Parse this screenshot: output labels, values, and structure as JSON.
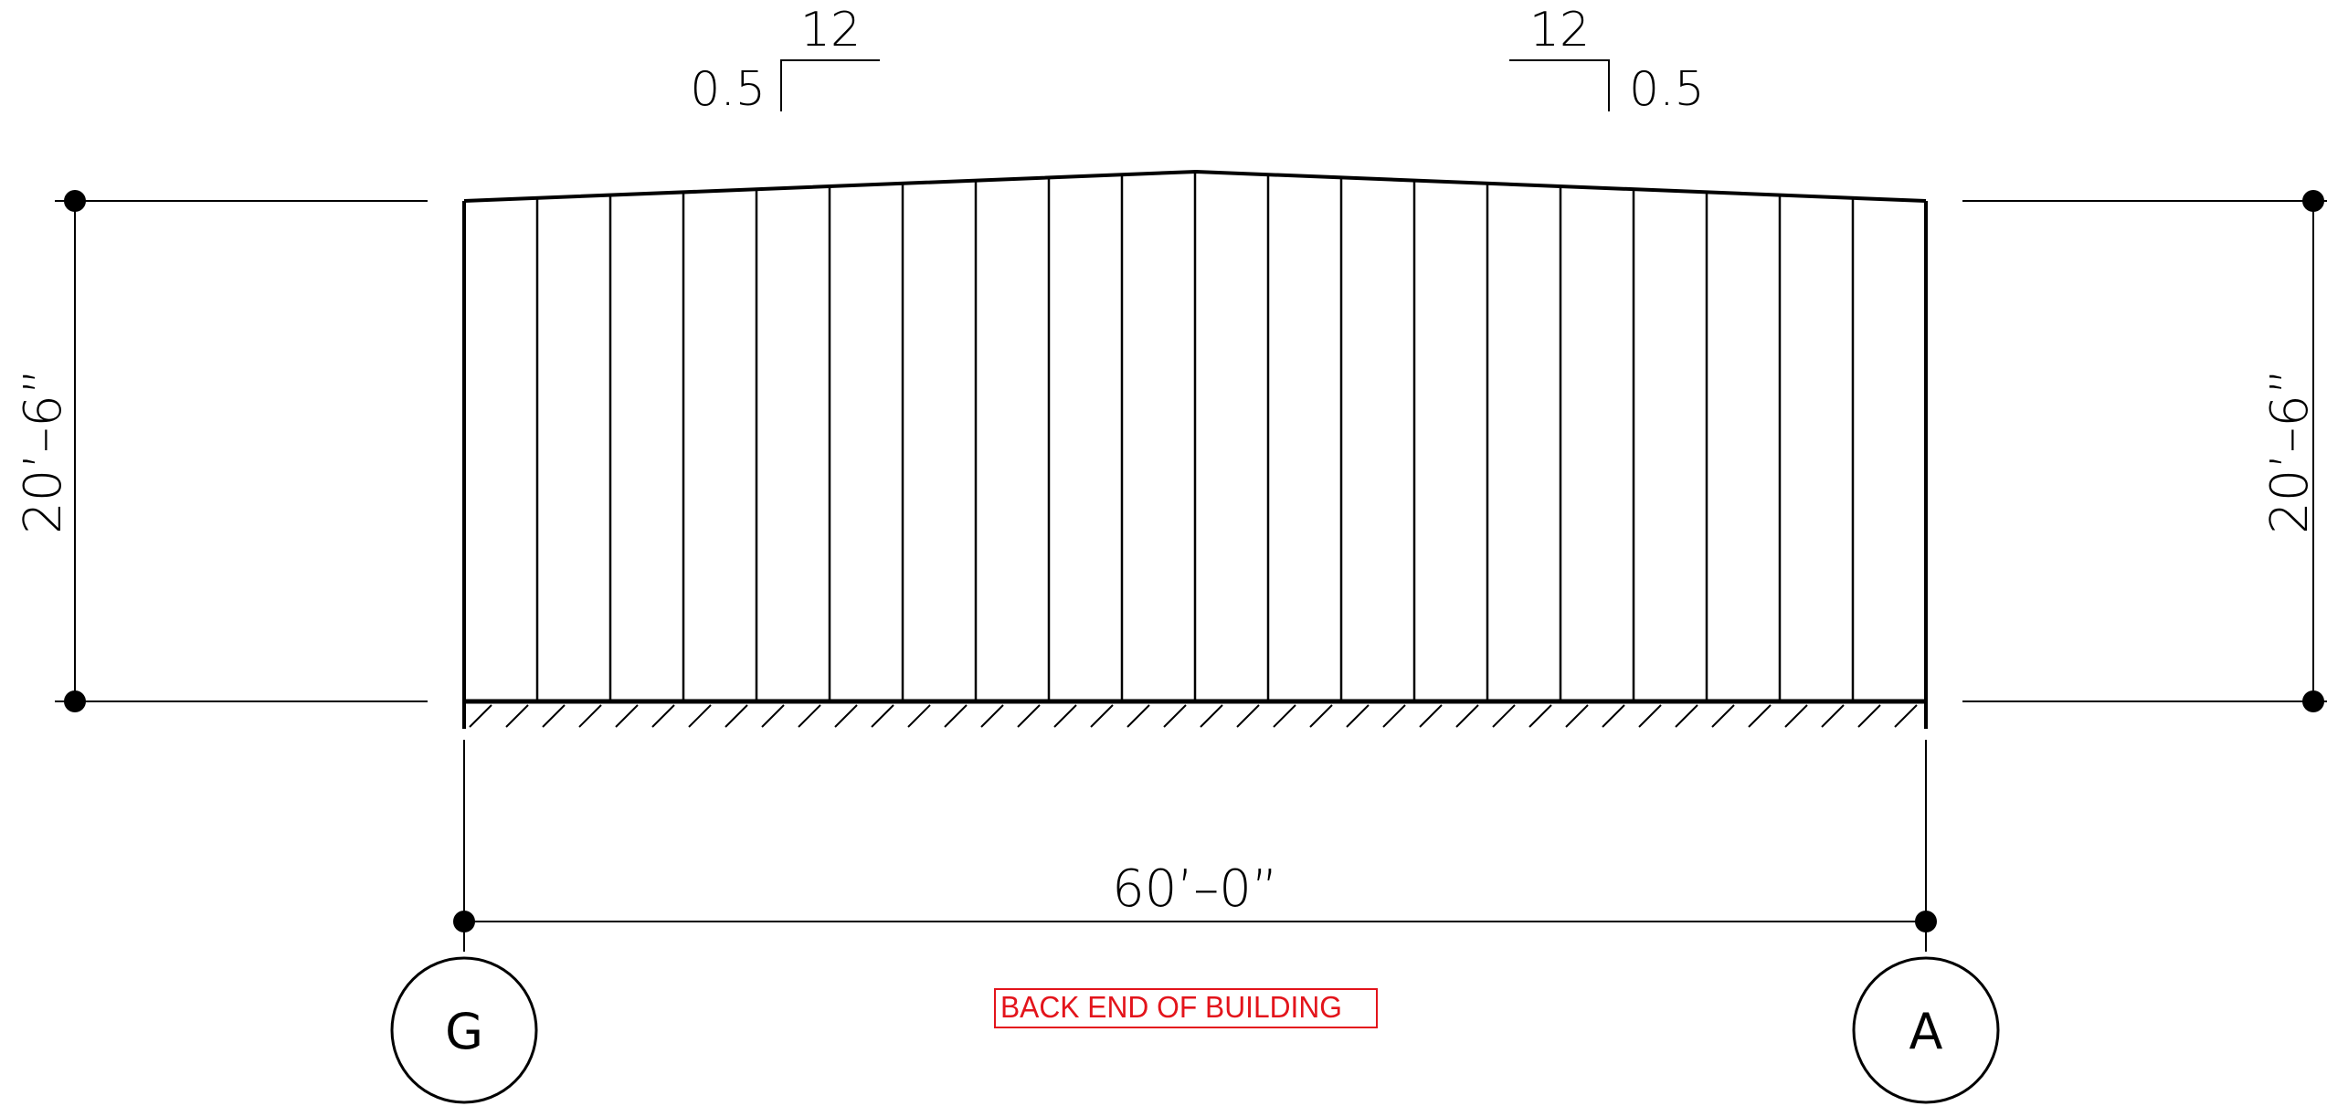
{
  "slope_left": {
    "rise": "0.5",
    "run": "12"
  },
  "slope_right": {
    "rise": "0.5",
    "run": "12"
  },
  "height_dimension_left": "20’–6”",
  "height_dimension_right": "20’–6”",
  "width_dimension": "60’–0”",
  "grid_left": "G",
  "grid_right": "A",
  "note": {
    "text": "BACK END OF BUILDING",
    "color": "#e3141b"
  },
  "panel_count": 20,
  "line_color": "#000000"
}
